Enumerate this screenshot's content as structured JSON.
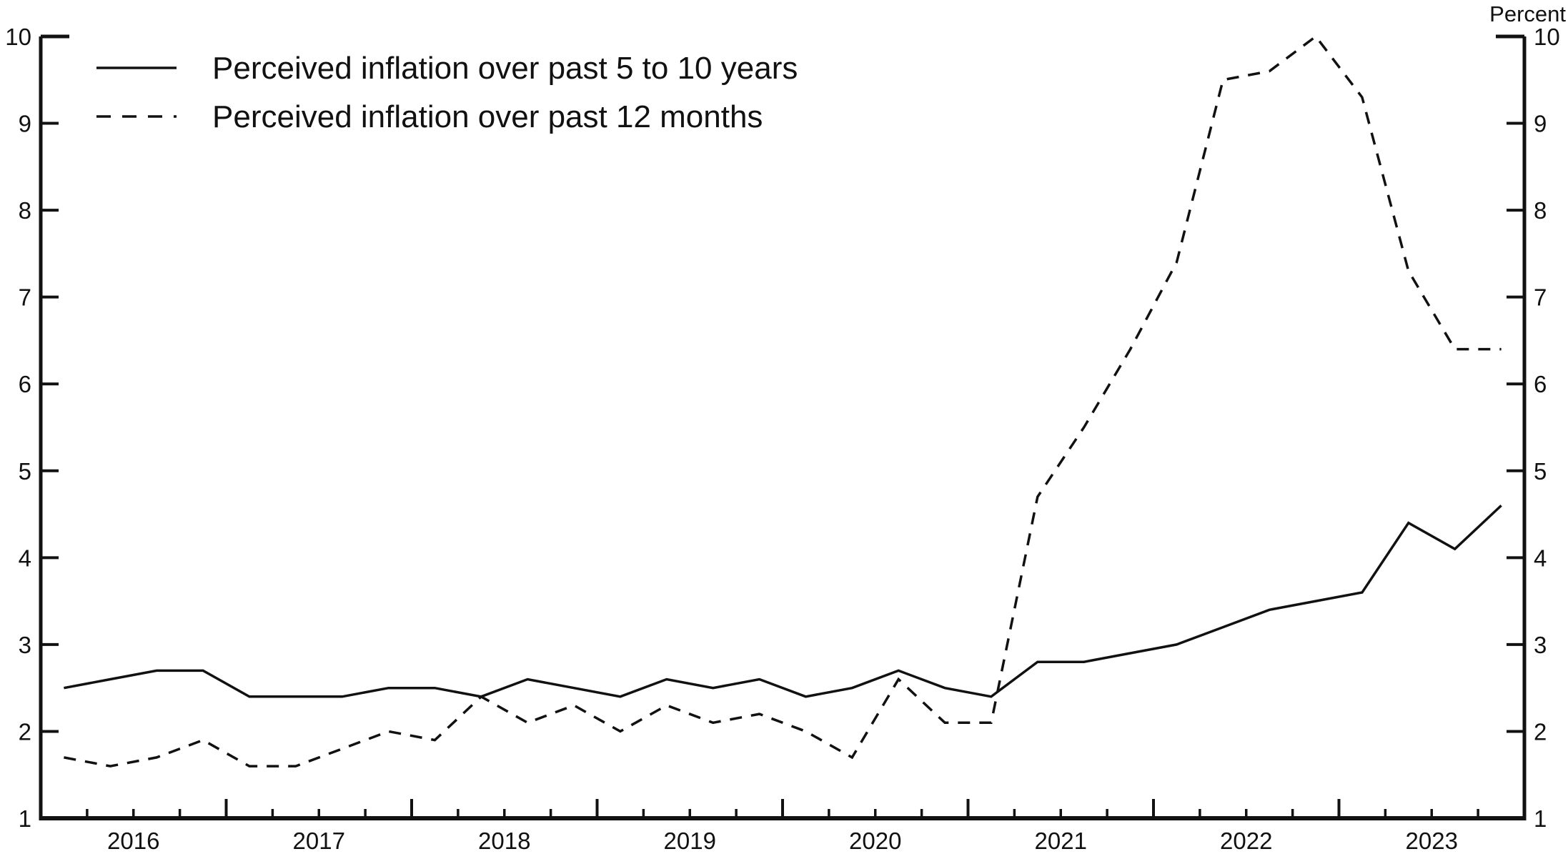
{
  "chart_data": {
    "type": "line",
    "title": "",
    "unit_label": "Percent",
    "xlim": [
      2016,
      2024
    ],
    "ylim": [
      1,
      10
    ],
    "yticks": [
      1,
      2,
      3,
      4,
      5,
      6,
      7,
      8,
      9,
      10
    ],
    "year_labels": [
      "2016",
      "2017",
      "2018",
      "2019",
      "2020",
      "2021",
      "2022",
      "2023"
    ],
    "frequency": "quarterly",
    "first_point_year_fraction": 2016.125,
    "point_step_years": 0.25,
    "grid": false,
    "legend_position": "top-left",
    "line_color": "#111111",
    "background": "#ffffff",
    "quarters": [
      "2016 Q1",
      "2016 Q2",
      "2016 Q3",
      "2016 Q4",
      "2017 Q1",
      "2017 Q2",
      "2017 Q3",
      "2017 Q4",
      "2018 Q1",
      "2018 Q2",
      "2018 Q3",
      "2018 Q4",
      "2019 Q1",
      "2019 Q2",
      "2019 Q3",
      "2019 Q4",
      "2020 Q1",
      "2020 Q2",
      "2020 Q3",
      "2020 Q4",
      "2021 Q1",
      "2021 Q2",
      "2021 Q3",
      "2021 Q4",
      "2022 Q1",
      "2022 Q2",
      "2022 Q3",
      "2022 Q4",
      "2023 Q1",
      "2023 Q2",
      "2023 Q3",
      "2023 Q4"
    ],
    "series": [
      {
        "name": "Perceived inflation over past 5 to 10 years",
        "line_style": "solid",
        "values": [
          2.5,
          2.6,
          2.7,
          2.7,
          2.4,
          2.4,
          2.4,
          2.5,
          2.5,
          2.4,
          2.6,
          2.5,
          2.4,
          2.6,
          2.5,
          2.6,
          2.4,
          2.5,
          2.7,
          2.5,
          2.4,
          2.8,
          2.8,
          2.9,
          3.0,
          3.2,
          3.4,
          3.5,
          3.6,
          4.4,
          4.1,
          4.6
        ]
      },
      {
        "name": "Perceived inflation over past 12 months",
        "line_style": "dashed",
        "values": [
          1.7,
          1.6,
          1.7,
          1.9,
          1.6,
          1.6,
          1.8,
          2.0,
          1.9,
          2.4,
          2.1,
          2.3,
          2.0,
          2.3,
          2.1,
          2.2,
          2.0,
          1.7,
          2.6,
          2.1,
          2.1,
          4.7,
          5.5,
          6.4,
          7.4,
          9.5,
          9.6,
          10.0,
          9.3,
          7.3,
          6.4,
          6.4
        ]
      }
    ]
  }
}
